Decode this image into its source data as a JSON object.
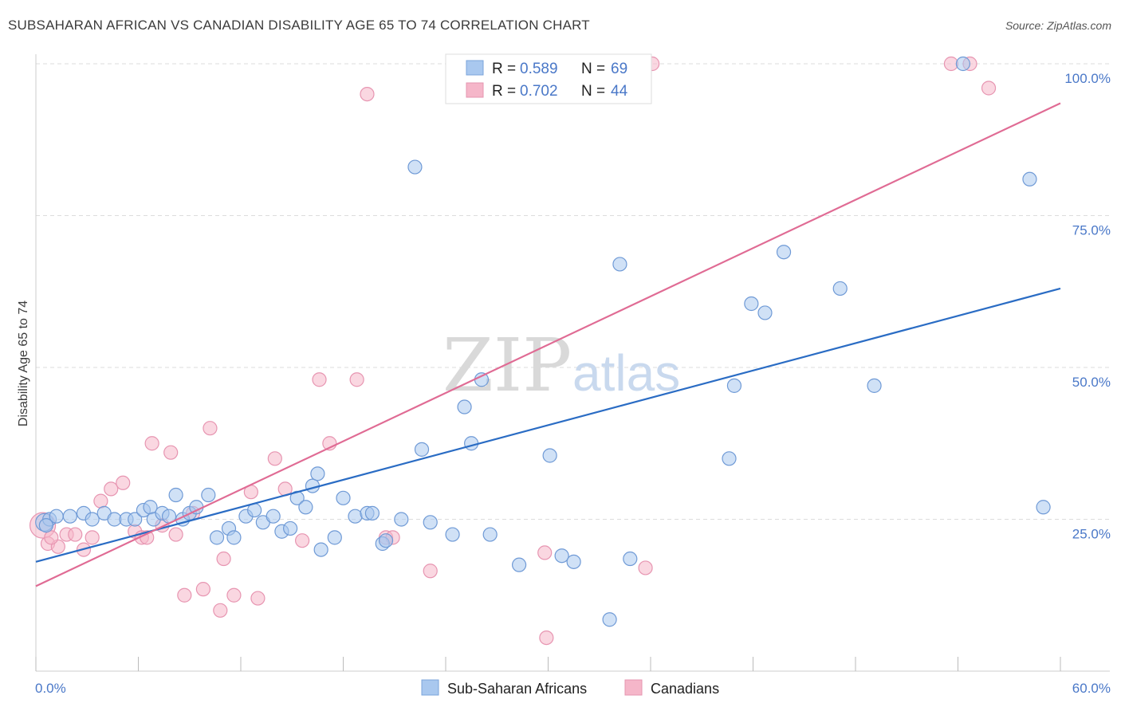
{
  "title": "SUBSAHARAN AFRICAN VS CANADIAN DISABILITY AGE 65 TO 74 CORRELATION CHART",
  "source": "Source: ZipAtlas.com",
  "watermark": {
    "zip": "ZIP",
    "atlas": "atlas"
  },
  "colors": {
    "blue_fill": "#a9c8ef",
    "blue_line": "#2a6cc4",
    "pink_fill": "#f5b6c9",
    "pink_line": "#e06b94",
    "tick": "#4a78c8",
    "grid": "#dddddd"
  },
  "legend": {
    "rows": [
      {
        "r_label": "R = ",
        "r_value": "0.589",
        "n_label": "N = ",
        "n_value": "69"
      },
      {
        "r_label": "R = ",
        "r_value": "0.702",
        "n_label": "N = ",
        "n_value": "44"
      }
    ]
  },
  "chart_data": {
    "type": "scatter",
    "title": "SUBSAHARAN AFRICAN VS CANADIAN DISABILITY AGE 65 TO 74 CORRELATION CHART",
    "xlabel": "",
    "ylabel": "Disability Age 65 to 74",
    "xlim": [
      0,
      60
    ],
    "ylim": [
      0,
      100
    ],
    "x_tick_labels": [
      "0.0%",
      "60.0%"
    ],
    "y_ticks": [
      25,
      50,
      75,
      100
    ],
    "y_tick_labels": [
      "25.0%",
      "50.0%",
      "75.0%",
      "100.0%"
    ],
    "grid": true,
    "legend_placement": "bottom",
    "series": [
      {
        "name": "Sub-Saharan Africans",
        "r": 0.589,
        "n": 69,
        "trend": {
          "x": [
            0,
            60
          ],
          "y": [
            18.0,
            63.0
          ]
        },
        "points": [
          [
            0.5,
            24.5
          ],
          [
            0.8,
            25
          ],
          [
            1.2,
            25.5
          ],
          [
            2,
            25.5
          ],
          [
            2.8,
            26
          ],
          [
            3.3,
            25
          ],
          [
            4,
            26
          ],
          [
            4.6,
            25
          ],
          [
            5.3,
            25
          ],
          [
            5.8,
            25
          ],
          [
            6.3,
            26.5
          ],
          [
            6.7,
            27
          ],
          [
            6.9,
            25
          ],
          [
            7.4,
            26
          ],
          [
            7.8,
            25.5
          ],
          [
            8.2,
            29
          ],
          [
            8.6,
            25
          ],
          [
            9,
            26
          ],
          [
            9.4,
            27
          ],
          [
            10.1,
            29
          ],
          [
            10.6,
            22
          ],
          [
            11.3,
            23.5
          ],
          [
            11.6,
            22
          ],
          [
            12.3,
            25.5
          ],
          [
            12.8,
            26.5
          ],
          [
            13.3,
            24.5
          ],
          [
            13.9,
            25.5
          ],
          [
            14.4,
            23
          ],
          [
            14.9,
            23.5
          ],
          [
            15.3,
            28.5
          ],
          [
            15.8,
            27
          ],
          [
            16.2,
            30.5
          ],
          [
            16.5,
            32.5
          ],
          [
            16.7,
            20
          ],
          [
            17.5,
            22
          ],
          [
            18,
            28.5
          ],
          [
            18.7,
            25.5
          ],
          [
            19.4,
            26
          ],
          [
            19.7,
            26
          ],
          [
            20.3,
            21
          ],
          [
            20.5,
            21.5
          ],
          [
            21.4,
            25
          ],
          [
            22.2,
            83
          ],
          [
            22.6,
            36.5
          ],
          [
            23.1,
            24.5
          ],
          [
            24.4,
            22.5
          ],
          [
            25.1,
            43.5
          ],
          [
            25.5,
            37.5
          ],
          [
            26.1,
            48
          ],
          [
            26.6,
            22.5
          ],
          [
            28.3,
            17.5
          ],
          [
            30.1,
            35.5
          ],
          [
            30.8,
            19
          ],
          [
            31.5,
            18
          ],
          [
            33.6,
            8.5
          ],
          [
            34.2,
            67
          ],
          [
            34.8,
            18.5
          ],
          [
            35.5,
            100
          ],
          [
            40.6,
            35
          ],
          [
            40.9,
            47
          ],
          [
            41.9,
            60.5
          ],
          [
            42.7,
            59
          ],
          [
            43.8,
            69
          ],
          [
            47.1,
            63
          ],
          [
            49.1,
            47
          ],
          [
            54.3,
            100
          ],
          [
            58.2,
            81
          ],
          [
            59,
            27
          ],
          [
            0.6,
            24
          ]
        ]
      },
      {
        "name": "Canadians",
        "r": 0.702,
        "n": 44,
        "trend": {
          "x": [
            0,
            60
          ],
          "y": [
            14.0,
            93.5
          ]
        },
        "points": [
          [
            0.4,
            24
          ],
          [
            0.7,
            21
          ],
          [
            1.3,
            20.5
          ],
          [
            1.8,
            22.5
          ],
          [
            2.3,
            22.5
          ],
          [
            2.8,
            20
          ],
          [
            3.3,
            22
          ],
          [
            3.8,
            28
          ],
          [
            4.4,
            30
          ],
          [
            5.1,
            31
          ],
          [
            5.8,
            23
          ],
          [
            6.2,
            22
          ],
          [
            6.8,
            37.5
          ],
          [
            7.4,
            24
          ],
          [
            7.9,
            36
          ],
          [
            8.2,
            22.5
          ],
          [
            8.7,
            12.5
          ],
          [
            9.2,
            26
          ],
          [
            9.8,
            13.5
          ],
          [
            10.2,
            40
          ],
          [
            10.8,
            10
          ],
          [
            11,
            18.5
          ],
          [
            11.6,
            12.5
          ],
          [
            12.6,
            29.5
          ],
          [
            13,
            12
          ],
          [
            14,
            35
          ],
          [
            14.6,
            30
          ],
          [
            15.6,
            21.5
          ],
          [
            16.6,
            48
          ],
          [
            17.2,
            37.5
          ],
          [
            18.8,
            48
          ],
          [
            19.4,
            95
          ],
          [
            20.5,
            22
          ],
          [
            20.9,
            22
          ],
          [
            23.1,
            16.5
          ],
          [
            29.8,
            19.5
          ],
          [
            29.9,
            5.5
          ],
          [
            35.7,
            17
          ],
          [
            36.1,
            100
          ],
          [
            53.6,
            100
          ],
          [
            54.7,
            100
          ],
          [
            55.8,
            96
          ],
          [
            0.9,
            22
          ],
          [
            6.5,
            22
          ]
        ]
      }
    ]
  },
  "bottom_legend": [
    {
      "label": "Sub-Saharan Africans"
    },
    {
      "label": "Canadians"
    }
  ]
}
